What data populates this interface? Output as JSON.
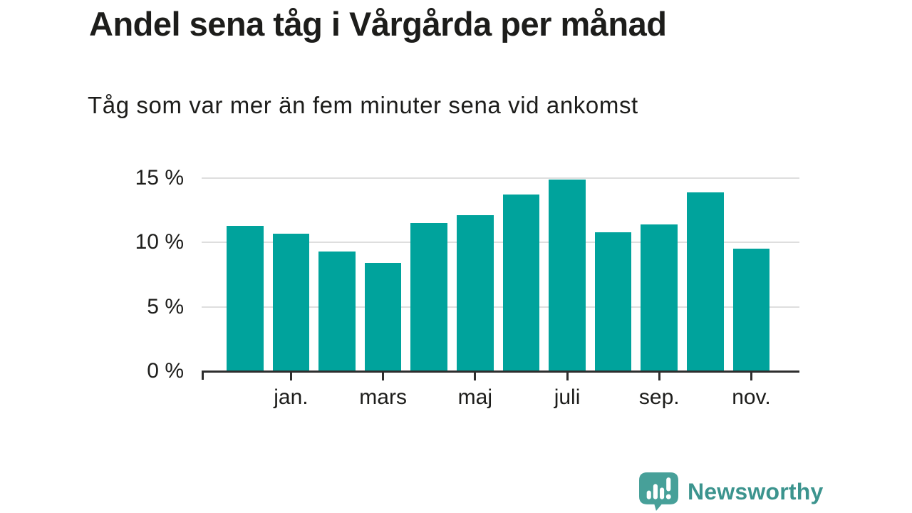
{
  "chart_data": {
    "type": "bar",
    "title": "Andel sena tåg i Vårgårda per månad",
    "subtitle": "Tåg som var mer än fem minuter sena vid ankomst",
    "categories": [
      "",
      "jan.",
      "",
      "mars",
      "",
      "maj",
      "",
      "juli",
      "",
      "sep.",
      "",
      "nov."
    ],
    "values": [
      11.3,
      10.7,
      9.3,
      8.4,
      11.5,
      12.1,
      13.7,
      14.9,
      10.8,
      11.4,
      13.9,
      9.5
    ],
    "unit": "%",
    "y_ticks": [
      0,
      5,
      10,
      15
    ],
    "y_tick_labels": [
      "0 %",
      "5 %",
      "10 %",
      "15 %"
    ],
    "ylim": [
      0,
      15.2
    ],
    "grid": true,
    "legend": false,
    "bar_color": "#00a39c",
    "grid_color": "#dedede",
    "axis_color": "#2e2e2e",
    "text_color": "#1d1d1b"
  },
  "branding": {
    "logo_text": "Newsworthy",
    "logo_text_color": "#3c948e",
    "logo_icon": "speech-bubble-with-bar-chart-and-exclamation",
    "logo_icon_color": "#47a099"
  }
}
